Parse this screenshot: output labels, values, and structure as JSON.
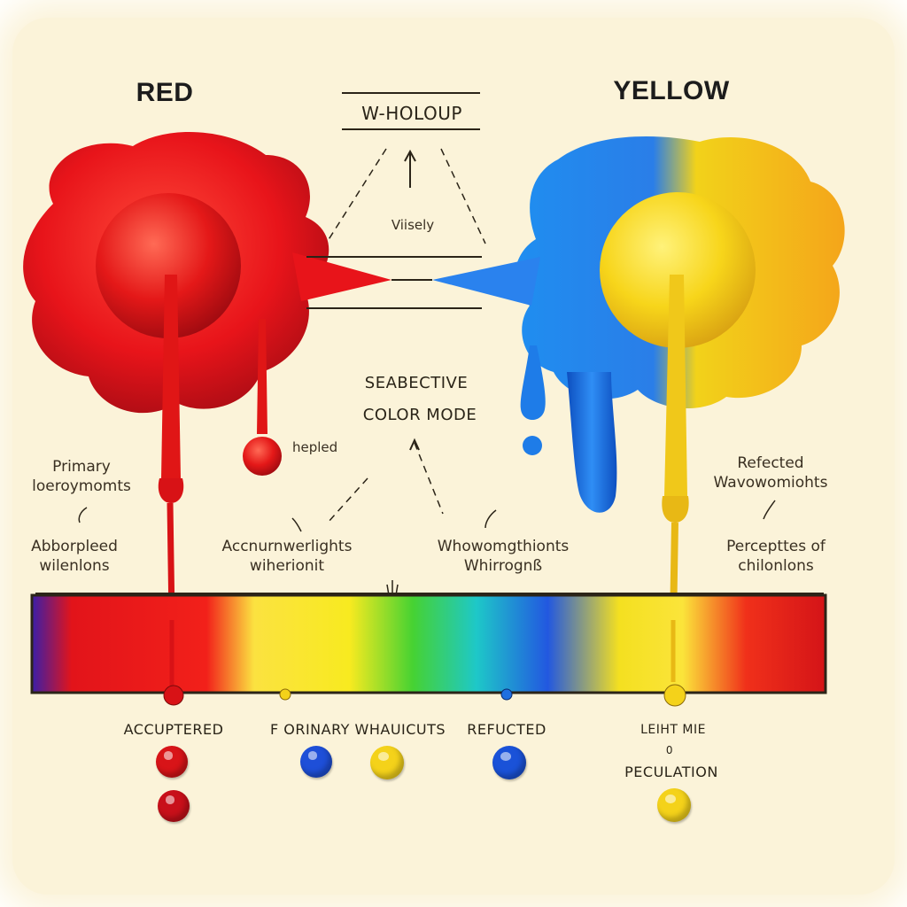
{
  "titles": {
    "left": "RED",
    "right": "YELLOW"
  },
  "top_box": {
    "label": "W-HOLOUP",
    "sub": "Viisely"
  },
  "center_label": {
    "line1": "SEABECTIVE",
    "line2": "COLOR MODE"
  },
  "side_notes": {
    "helped": "hepled",
    "left_top": [
      "Primary",
      "loeroymomts"
    ],
    "left_bottom": [
      "Abborpleed",
      "wilenlons"
    ],
    "mid_left": [
      "Accnurnwerlights",
      "wiherionit"
    ],
    "mid_right": [
      "Whowomgthionts",
      "Whirrognß"
    ],
    "right_top": [
      "Refected",
      "Wavowomiohts"
    ],
    "right_bottom": [
      "Percepttes of",
      "chilonlons"
    ]
  },
  "bottom_labels": {
    "absorbed": "ACCUPTERED",
    "primary": "F ORINARY WHAUICUTS",
    "reflected": "REFUCTED",
    "light_mix": "LEIHT MIE",
    "light_mix_sub": "0",
    "perception": "PECULATION"
  },
  "colors": {
    "red": "#e8141a",
    "yellow": "#f7d51a",
    "blue": "#1f6fe0",
    "paper": "#fbf3d9",
    "ink": "#2b2418"
  },
  "icons": [
    "up-arrow-icon",
    "curved-arrow-icon"
  ]
}
